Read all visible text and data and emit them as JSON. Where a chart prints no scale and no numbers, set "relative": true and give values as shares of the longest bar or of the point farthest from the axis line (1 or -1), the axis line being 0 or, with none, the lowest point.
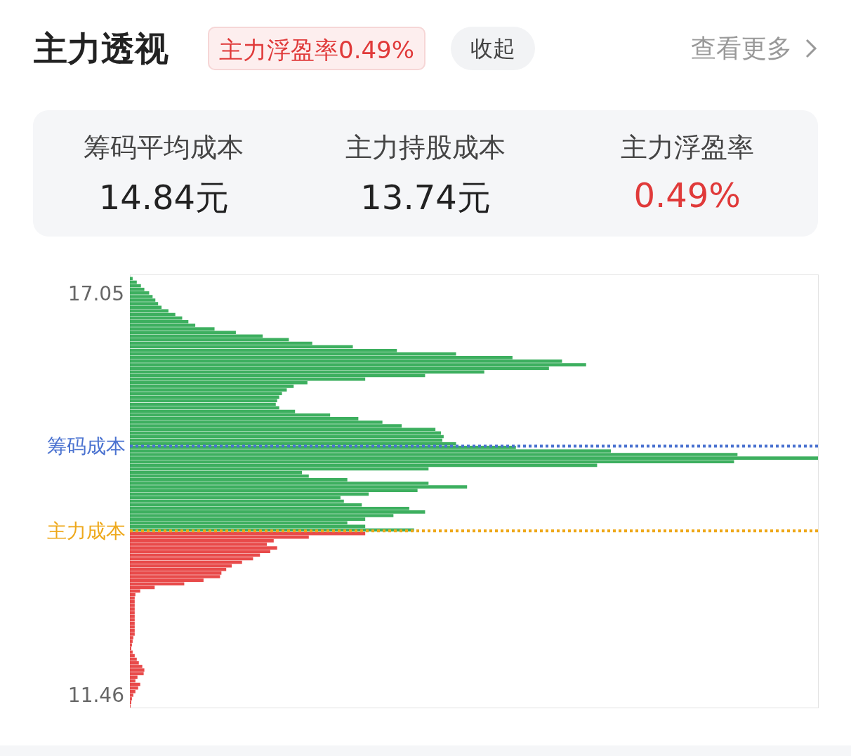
{
  "chart_data": {
    "type": "bar",
    "orientation": "horizontal",
    "relative": true,
    "title": "主力透视",
    "annotations": [
      "主力浮盈率0.49%",
      "收起",
      "查看更多",
      "筹码平均成本",
      "14.84元",
      "主力持股成本",
      "13.74元",
      "主力浮盈率",
      "0.49%"
    ],
    "ylim": [
      11.28,
      17.3
    ],
    "yticks": [
      17.05,
      11.46
    ],
    "ref_lines": [
      {
        "axis": "y",
        "value": 14.92,
        "label": "筹码成本",
        "color": "#4a72d0",
        "line_style": "dotted"
      },
      {
        "axis": "y",
        "value": 13.74,
        "label": "主力成本",
        "color": "#eea81a",
        "line_style": "dotted"
      }
    ],
    "series": [
      {
        "color": "#3daf5f",
        "x": [
          17.25,
          17.2,
          17.15,
          17.1,
          17.05,
          17.0,
          16.95,
          16.9,
          16.85,
          16.8,
          16.75,
          16.7,
          16.65,
          16.6,
          16.55,
          16.5,
          16.45,
          16.4,
          16.35,
          16.3,
          16.25,
          16.2,
          16.15,
          16.1,
          16.05,
          16.0,
          15.95,
          15.9,
          15.85,
          15.8,
          15.75,
          15.7,
          15.65,
          15.6,
          15.55,
          15.5,
          15.45,
          15.4,
          15.35,
          15.3,
          15.25,
          15.2,
          15.15,
          15.1,
          15.05,
          15.0,
          14.95,
          14.9,
          14.85,
          14.8,
          14.75,
          14.7,
          14.65,
          14.6,
          14.55,
          14.5,
          14.45,
          14.4,
          14.35,
          14.3,
          14.25,
          14.2,
          14.15,
          14.1,
          14.05,
          14.0,
          13.95,
          13.9,
          13.85,
          13.8,
          13.75
        ],
        "values": [
          0.004,
          0.01,
          0.016,
          0.021,
          0.028,
          0.033,
          0.037,
          0.041,
          0.046,
          0.056,
          0.066,
          0.076,
          0.085,
          0.095,
          0.123,
          0.154,
          0.193,
          0.231,
          0.265,
          0.324,
          0.388,
          0.474,
          0.556,
          0.628,
          0.663,
          0.609,
          0.515,
          0.429,
          0.342,
          0.258,
          0.238,
          0.228,
          0.221,
          0.217,
          0.214,
          0.212,
          0.217,
          0.24,
          0.291,
          0.332,
          0.367,
          0.395,
          0.444,
          0.452,
          0.456,
          0.454,
          0.474,
          0.561,
          0.699,
          0.883,
          1,
          0.878,
          0.679,
          0.434,
          0.25,
          0.26,
          0.316,
          0.434,
          0.49,
          0.418,
          0.347,
          0.306,
          0.311,
          0.337,
          0.406,
          0.429,
          0.383,
          0.342,
          0.316,
          0.342,
          0.413
        ]
      },
      {
        "color": "#e84a4a",
        "x": [
          13.7,
          13.65,
          13.6,
          13.55,
          13.5,
          13.45,
          13.4,
          13.35,
          13.3,
          13.25,
          13.2,
          13.15,
          13.1,
          13.05,
          13.0,
          12.95,
          12.9,
          12.85,
          12.8,
          12.75,
          12.7,
          12.65,
          12.6,
          12.55,
          12.5,
          12.45,
          12.4,
          12.35,
          12.3,
          12.25,
          12.2,
          12.15,
          12.1,
          12.05,
          12.0,
          11.95,
          11.9,
          11.85,
          11.8,
          11.75,
          11.7,
          11.65,
          11.6,
          11.55,
          11.5,
          11.45,
          11.4,
          11.35,
          11.3
        ],
        "values": [
          0.342,
          0.26,
          0.209,
          0.199,
          0.214,
          0.204,
          0.189,
          0.179,
          0.163,
          0.148,
          0.14,
          0.133,
          0.131,
          0.107,
          0.079,
          0.036,
          0.015,
          0.008,
          0.007,
          0.007,
          0.007,
          0.007,
          0.007,
          0.007,
          0.007,
          0.007,
          0.007,
          0.007,
          0.007,
          0.005,
          0.004,
          0.003,
          0.002,
          0.004,
          0.007,
          0.01,
          0.013,
          0.018,
          0.021,
          0.02,
          0.011,
          0.008,
          0.015,
          0.012,
          0.008,
          0.005,
          0.003,
          0.002,
          0.001
        ]
      }
    ]
  }
}
